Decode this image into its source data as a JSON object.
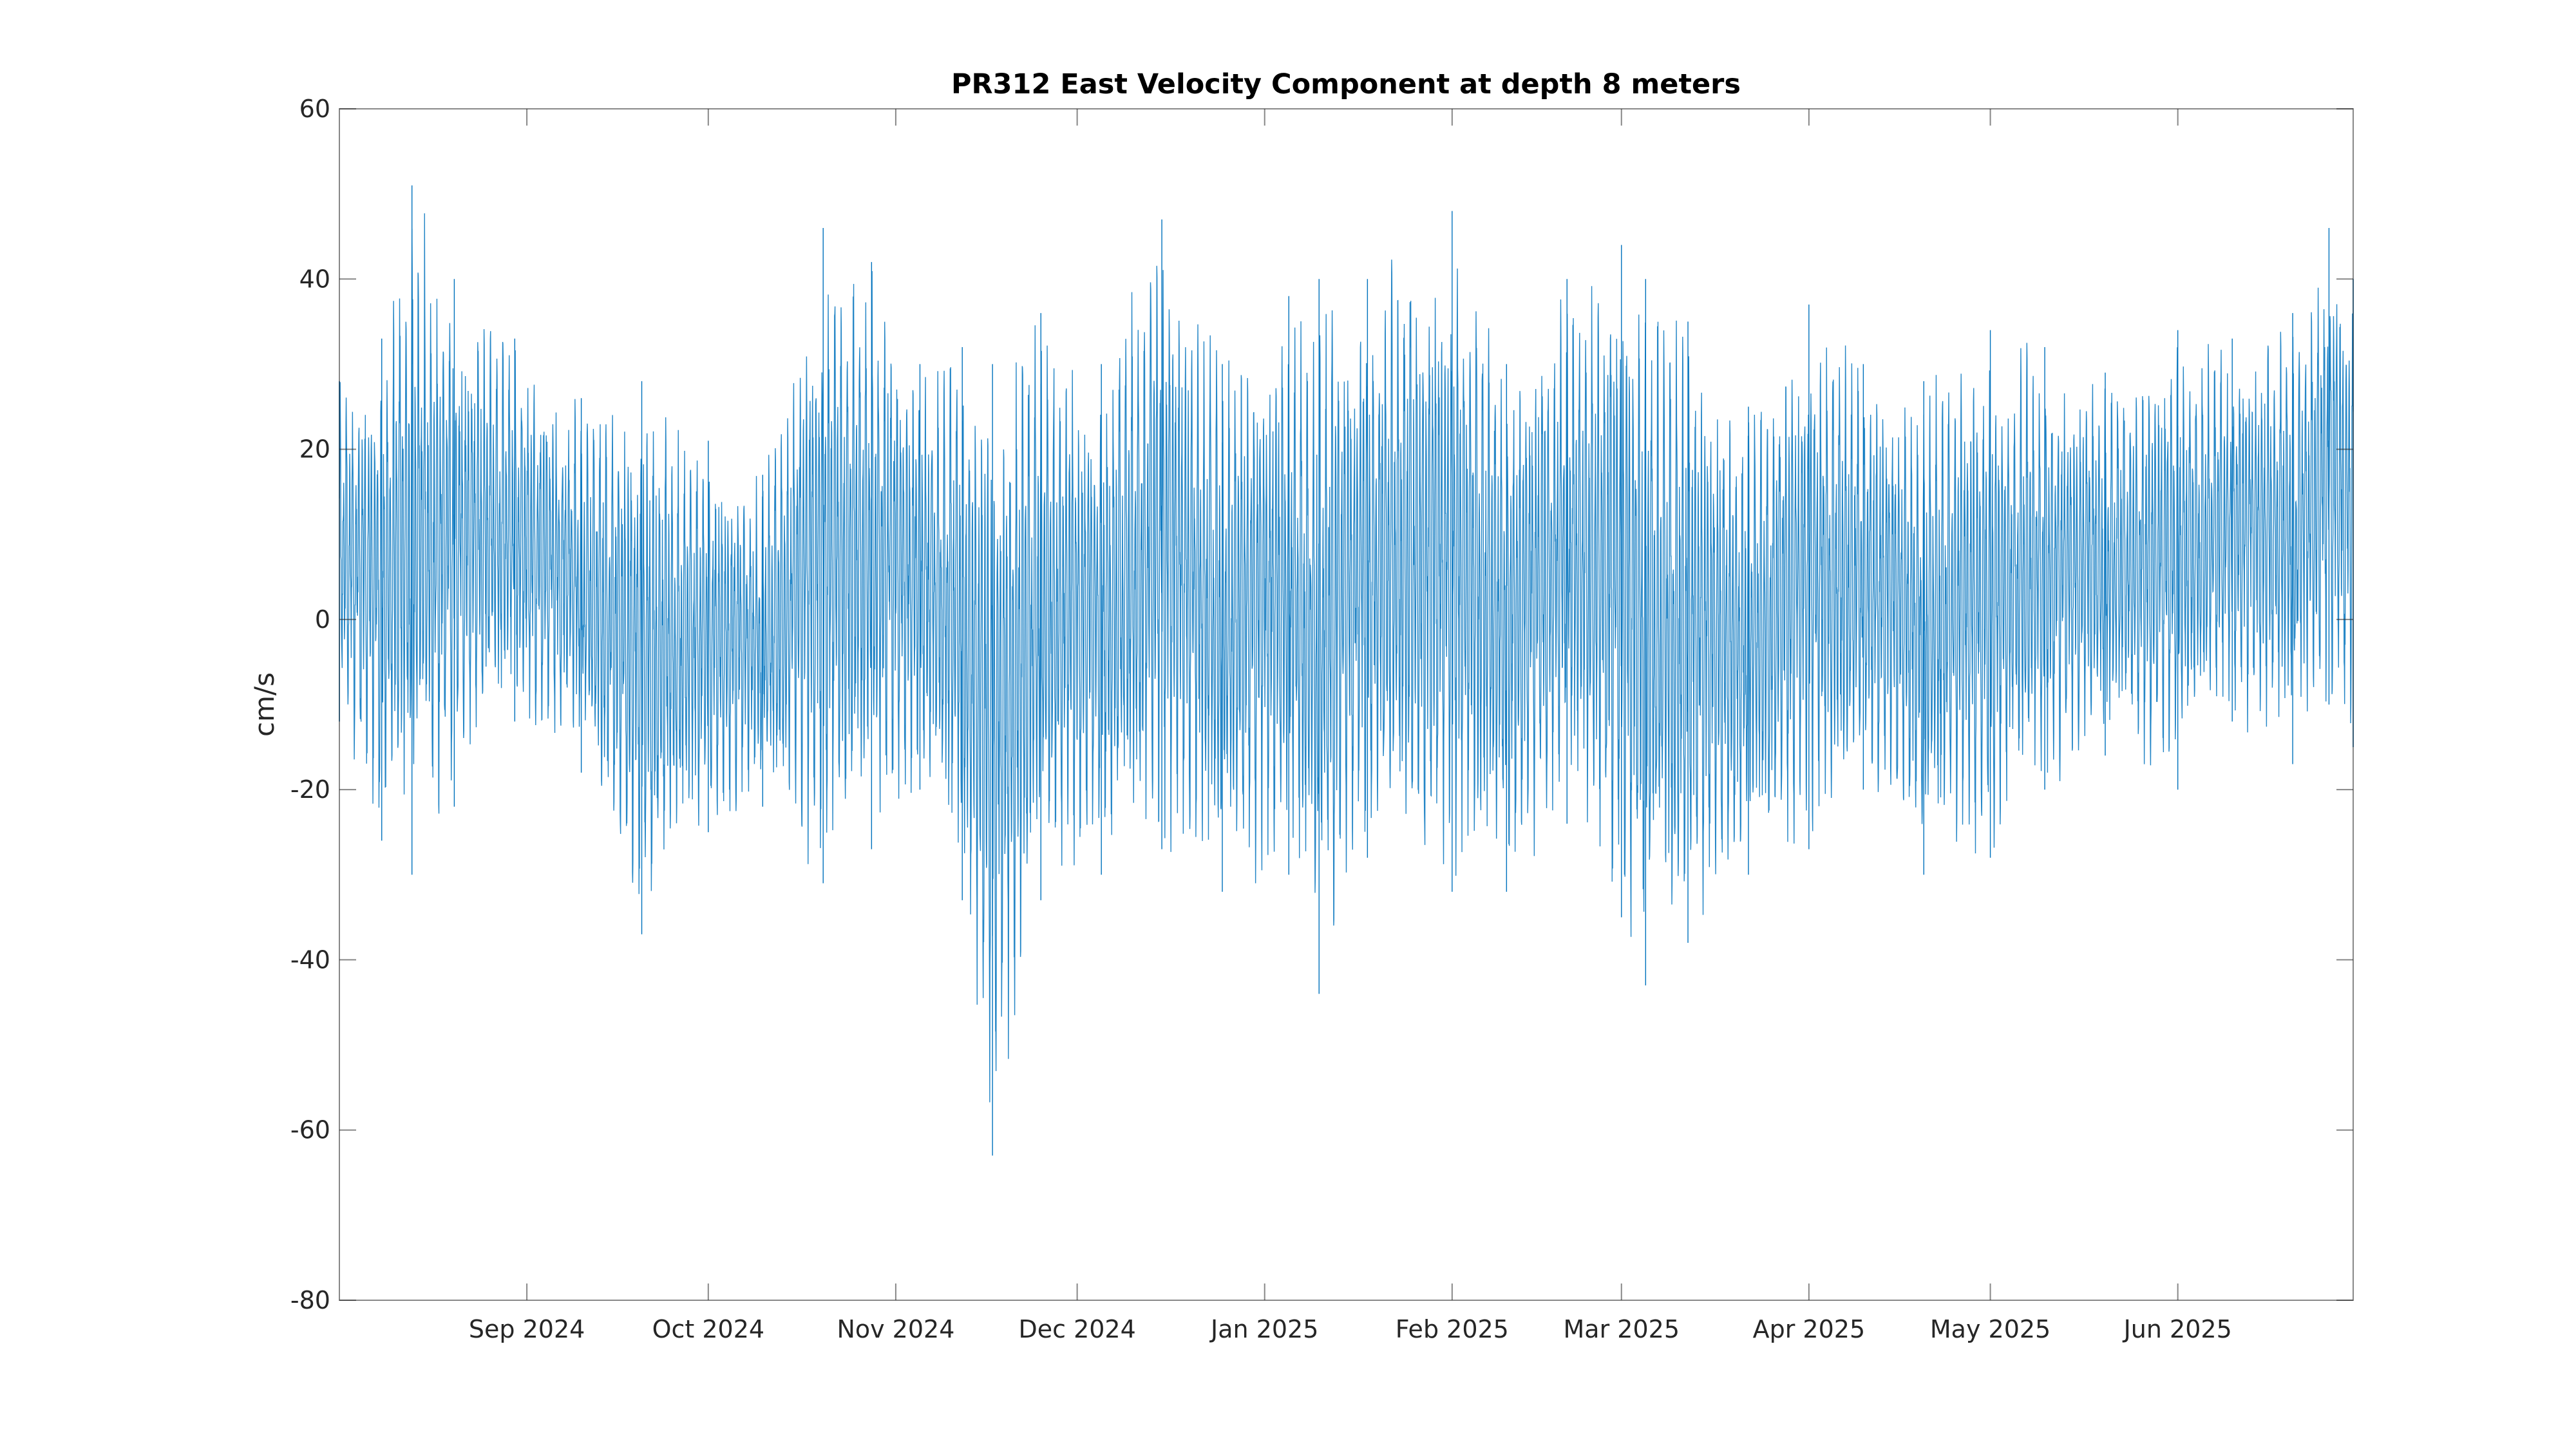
{
  "chart_data": {
    "type": "line",
    "title": "PR312 East Velocity Component at depth 8 meters",
    "xlabel": "",
    "ylabel": "cm/s",
    "ylim": [
      -80,
      60
    ],
    "yticks": [
      60,
      40,
      20,
      0,
      -20,
      -40,
      -60,
      -80
    ],
    "xlim": [
      "2024-08-01",
      "2025-06-30"
    ],
    "xticks": [
      {
        "date": "2024-09-01",
        "label": "Sep 2024"
      },
      {
        "date": "2024-10-01",
        "label": "Oct 2024"
      },
      {
        "date": "2024-11-01",
        "label": "Nov 2024"
      },
      {
        "date": "2024-12-01",
        "label": "Dec 2024"
      },
      {
        "date": "2025-01-01",
        "label": "Jan 2025"
      },
      {
        "date": "2025-02-01",
        "label": "Feb 2025"
      },
      {
        "date": "2025-03-01",
        "label": "Mar 2025"
      },
      {
        "date": "2025-04-01",
        "label": "Apr 2025"
      },
      {
        "date": "2025-05-01",
        "label": "May 2025"
      },
      {
        "date": "2025-06-01",
        "label": "Jun 2025"
      }
    ],
    "grid": false,
    "line_color": "#0072bd",
    "series": [
      {
        "sampling": "hourly",
        "x_start": "2024-08-01",
        "x_end": "2025-06-30",
        "range_envelope": [
          {
            "x": "2024-08-01",
            "min": -12,
            "max": 28
          },
          {
            "x": "2024-08-08",
            "min": -26,
            "max": 33
          },
          {
            "x": "2024-08-13",
            "min": -30,
            "max": 51
          },
          {
            "x": "2024-08-20",
            "min": -22,
            "max": 40
          },
          {
            "x": "2024-08-30",
            "min": -12,
            "max": 33
          },
          {
            "x": "2024-09-10",
            "min": -18,
            "max": 26
          },
          {
            "x": "2024-09-20",
            "min": -37,
            "max": 28
          },
          {
            "x": "2024-10-01",
            "min": -25,
            "max": 21
          },
          {
            "x": "2024-10-10",
            "min": -22,
            "max": 17
          },
          {
            "x": "2024-10-20",
            "min": -31,
            "max": 46
          },
          {
            "x": "2024-10-28",
            "min": -27,
            "max": 42
          },
          {
            "x": "2024-11-05",
            "min": -20,
            "max": 30
          },
          {
            "x": "2024-11-12",
            "min": -33,
            "max": 32
          },
          {
            "x": "2024-11-17",
            "min": -63,
            "max": 30
          },
          {
            "x": "2024-11-25",
            "min": -33,
            "max": 36
          },
          {
            "x": "2024-12-05",
            "min": -30,
            "max": 30
          },
          {
            "x": "2024-12-15",
            "min": -27,
            "max": 47
          },
          {
            "x": "2024-12-25",
            "min": -32,
            "max": 30
          },
          {
            "x": "2025-01-05",
            "min": -30,
            "max": 38
          },
          {
            "x": "2025-01-10",
            "min": -44,
            "max": 40
          },
          {
            "x": "2025-01-18",
            "min": -28,
            "max": 40
          },
          {
            "x": "2025-02-01",
            "min": -32,
            "max": 48
          },
          {
            "x": "2025-02-10",
            "min": -32,
            "max": 30
          },
          {
            "x": "2025-02-20",
            "min": -24,
            "max": 40
          },
          {
            "x": "2025-03-01",
            "min": -35,
            "max": 44
          },
          {
            "x": "2025-03-05",
            "min": -43,
            "max": 40
          },
          {
            "x": "2025-03-12",
            "min": -38,
            "max": 35
          },
          {
            "x": "2025-03-22",
            "min": -30,
            "max": 25
          },
          {
            "x": "2025-04-01",
            "min": -27,
            "max": 37
          },
          {
            "x": "2025-04-10",
            "min": -20,
            "max": 30
          },
          {
            "x": "2025-04-20",
            "min": -30,
            "max": 28
          },
          {
            "x": "2025-05-01",
            "min": -28,
            "max": 34
          },
          {
            "x": "2025-05-10",
            "min": -20,
            "max": 32
          },
          {
            "x": "2025-05-20",
            "min": -16,
            "max": 29
          },
          {
            "x": "2025-06-01",
            "min": -20,
            "max": 34
          },
          {
            "x": "2025-06-10",
            "min": -12,
            "max": 33
          },
          {
            "x": "2025-06-20",
            "min": -17,
            "max": 36
          },
          {
            "x": "2025-06-26",
            "min": -10,
            "max": 46
          },
          {
            "x": "2025-06-30",
            "min": -15,
            "max": 40
          }
        ]
      }
    ]
  }
}
